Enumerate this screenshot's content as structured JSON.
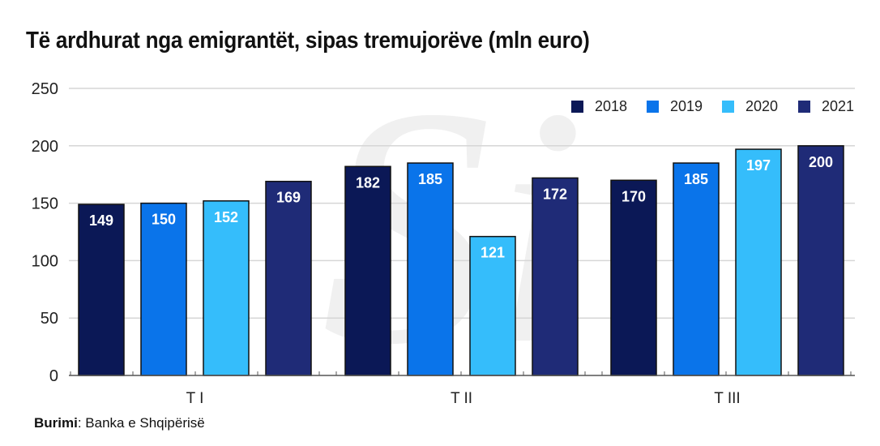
{
  "chart_data": {
    "type": "bar",
    "title": "Të ardhurat nga emigrantët, sipas tremujorëve (mln euro)",
    "categories": [
      "T I",
      "T II",
      "T III"
    ],
    "series": [
      {
        "name": "2018",
        "color": "#0b1856",
        "values": [
          149,
          182,
          170
        ]
      },
      {
        "name": "2019",
        "color": "#0a74ea",
        "values": [
          150,
          185,
          185
        ]
      },
      {
        "name": "2020",
        "color": "#35bdfb",
        "values": [
          152,
          121,
          197
        ]
      },
      {
        "name": "2021",
        "color": "#1f2b77",
        "values": [
          169,
          172,
          200
        ]
      }
    ],
    "ylim": [
      0,
      250
    ],
    "yticks": [
      0,
      50,
      100,
      150,
      200,
      250
    ],
    "grid": true,
    "legend": "top-right",
    "data_labels": true
  },
  "source": {
    "label": "Burimi",
    "text": ": Banka e Shqipërisë"
  }
}
